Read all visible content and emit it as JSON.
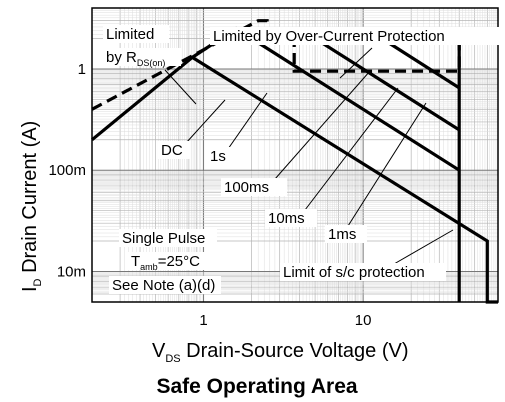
{
  "chart_data": {
    "type": "line",
    "title": "Safe Operating Area",
    "xlabel": {
      "main": "V",
      "sub": "DS",
      "rest": " Drain-Source Voltage (V)"
    },
    "ylabel": {
      "main": "I",
      "sub": "D",
      "rest": " Drain Current (A)"
    },
    "x_scale": "log",
    "y_scale": "log",
    "xlim": [
      0.2,
      70
    ],
    "ylim": [
      0.005,
      4
    ],
    "grid": true,
    "x_ticks": [
      {
        "value": 1,
        "label": "1"
      },
      {
        "value": 10,
        "label": "10"
      }
    ],
    "y_ticks": [
      {
        "value": 1,
        "label": "1"
      },
      {
        "value": 0.1,
        "label": "100m"
      },
      {
        "value": 0.01,
        "label": "10m"
      }
    ],
    "series": [
      {
        "label": "DC",
        "style": "solid",
        "x": [
          0.2,
          0.85,
          60,
          60,
          70
        ],
        "y": [
          0.2,
          1.3,
          0.02,
          0.005,
          0.005
        ]
      },
      {
        "label": "1s",
        "style": "solid",
        "x": [
          0.85,
          1.6,
          40
        ],
        "y": [
          1.3,
          2.5,
          0.1
        ]
      },
      {
        "label": "100ms",
        "style": "solid",
        "x": [
          1.6,
          4,
          40
        ],
        "y": [
          2.5,
          2.5,
          0.25
        ]
      },
      {
        "label": "10ms",
        "style": "solid",
        "x": [
          4,
          10.5,
          40
        ],
        "y": [
          2.5,
          2.5,
          0.65
        ]
      },
      {
        "label": "1ms",
        "style": "solid",
        "x": [
          10.5,
          40,
          40
        ],
        "y": [
          2.5,
          2.5,
          0.005
        ]
      },
      {
        "label": "Limited by Over-Current Protection",
        "style": "dashed",
        "x": [
          0.2,
          2.2,
          2.5,
          2.5,
          40,
          40,
          3.7,
          3.7,
          2.5
        ],
        "y": [
          0.4,
          3,
          3,
          2.5,
          2.5,
          0.95,
          0.95,
          2.5,
          2.5
        ]
      }
    ],
    "annotations": [
      {
        "id": "limited",
        "text": "Limited"
      },
      {
        "id": "rdson",
        "text": "by R",
        "sub": "DS(on)"
      },
      {
        "id": "ocp",
        "text": "Limited by Over-Current Protection"
      },
      {
        "id": "dc",
        "text": "DC"
      },
      {
        "id": "1s",
        "text": "1s"
      },
      {
        "id": "100ms",
        "text": "100ms"
      },
      {
        "id": "10ms",
        "text": "10ms"
      },
      {
        "id": "1ms",
        "text": "1ms"
      },
      {
        "id": "pulse",
        "text": "Single Pulse"
      },
      {
        "id": "tamb",
        "text": "T",
        "sub": "amb",
        "rest": "=25°C"
      },
      {
        "id": "note",
        "text": "See Note (a)(d)"
      },
      {
        "id": "sc",
        "text": "Limit of s/c protection"
      }
    ]
  }
}
